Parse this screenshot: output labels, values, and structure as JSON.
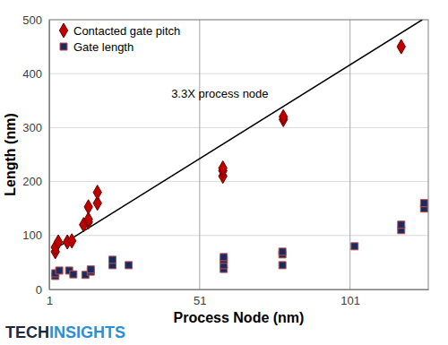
{
  "chart_data": {
    "type": "scatter",
    "x_label": "Process Node (nm)",
    "y_label": "Length (nm)",
    "annotation": "3.3X process node",
    "logo": [
      "TECH",
      "INSIGHTS"
    ],
    "xlim": [
      1,
      127
    ],
    "xticks": [
      1,
      51,
      101
    ],
    "ylim": [
      0,
      500
    ],
    "yticks": [
      0,
      100,
      200,
      300,
      400,
      500
    ],
    "grid": true,
    "legend": "upper left",
    "series": [
      {
        "name": "Contacted gate pitch",
        "color": "#c00000",
        "marker": "diamond",
        "x": [
          3,
          3,
          4,
          7,
          8.5,
          12.4,
          14,
          14,
          14,
          17,
          17,
          58.7,
          58.7,
          58.7,
          78.8,
          78.8,
          118
        ],
        "y": [
          70,
          78,
          88,
          88,
          90,
          120,
          125,
          130,
          153,
          160,
          180,
          210,
          220,
          225,
          315,
          320,
          450
        ]
      },
      {
        "name": "Gate length",
        "color": "#1f2a5c",
        "marker": "square",
        "x": [
          3,
          3,
          4.3,
          7.6,
          9,
          13,
          14.8,
          14.8,
          22,
          22,
          27.4,
          59,
          59,
          59,
          59,
          78.5,
          78.5,
          78.5,
          102.5,
          118,
          118,
          125.6,
          125.6
        ],
        "y": [
          25,
          30,
          35,
          35,
          28,
          27,
          33,
          37,
          45,
          55,
          45,
          38,
          45,
          55,
          60,
          45,
          65,
          70,
          80,
          110,
          120,
          150,
          160
        ]
      },
      {
        "type": "line",
        "color": "#000000",
        "line_style": "solid",
        "x": [
          2,
          125
        ],
        "y": [
          72,
          500
        ]
      }
    ]
  }
}
